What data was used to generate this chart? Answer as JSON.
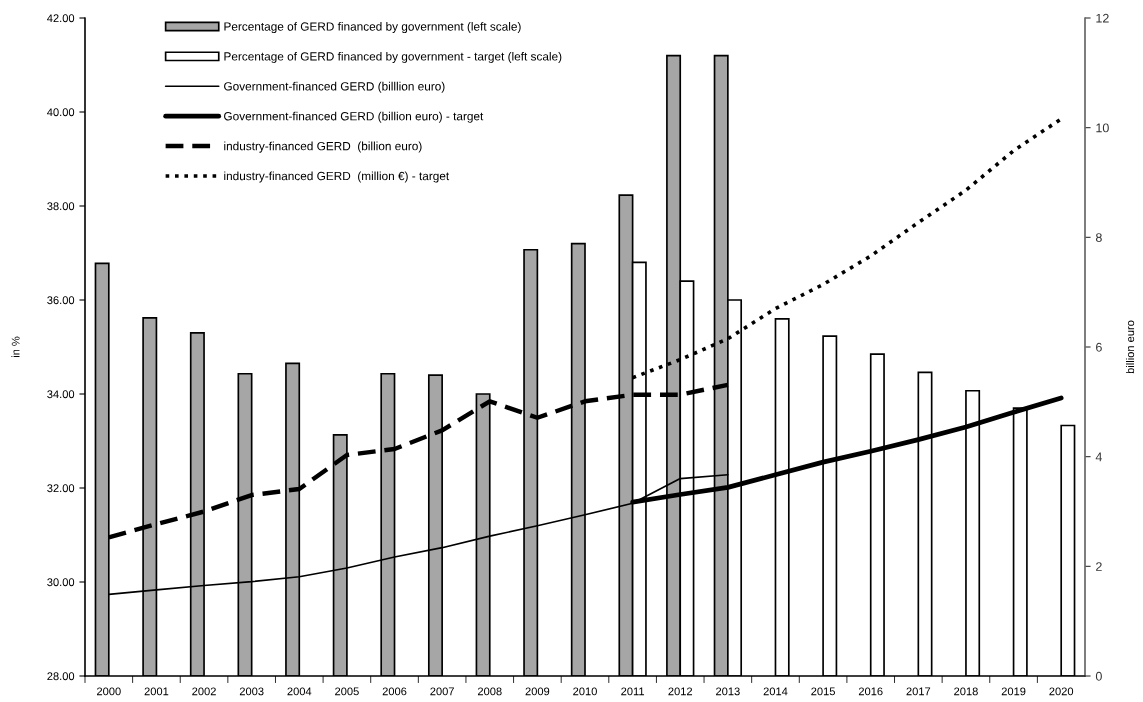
{
  "chart_data": {
    "type": "bar",
    "ylabel": "in %",
    "y2label": "billion euro",
    "categories": [
      "2000",
      "2001",
      "2002",
      "2003",
      "2004",
      "2005",
      "2006",
      "2007",
      "2008",
      "2009",
      "2010",
      "2011",
      "2012",
      "2013",
      "2014",
      "2015",
      "2016",
      "2017",
      "2018",
      "2019",
      "2020"
    ],
    "series": [
      {
        "name": "Percentage of GERD financed by government (left scale)",
        "color": "#a6a6a6",
        "values": [
          36.78,
          35.62,
          35.3,
          34.43,
          34.65,
          33.13,
          34.43,
          34.4,
          34.0,
          37.07,
          37.2,
          38.23,
          41.2,
          41.2,
          null,
          null,
          null,
          null,
          null,
          null,
          null
        ]
      },
      {
        "name": "Percentage of GERD financed by government - target (left scale)",
        "color": "#ffffff",
        "values": [
          null,
          null,
          null,
          null,
          null,
          null,
          null,
          null,
          null,
          null,
          null,
          36.8,
          36.4,
          36.0,
          35.6,
          35.23,
          34.85,
          34.46,
          34.07,
          33.7,
          33.33
        ]
      },
      {
        "name": "Government-financed GERD (billlion euro)",
        "type": "line",
        "axis": "y2",
        "color": "#000000",
        "line_style": "solid",
        "values": [
          1.49,
          1.57,
          1.65,
          1.72,
          1.81,
          1.97,
          2.17,
          2.34,
          2.55,
          2.74,
          2.94,
          3.15,
          3.6,
          3.67,
          null,
          null,
          null,
          null,
          null,
          null,
          null
        ]
      },
      {
        "name": "Government-financed GERD (billion euro) - target",
        "type": "line",
        "axis": "y2",
        "color": "#000000",
        "line_style": "solid",
        "values": [
          null,
          null,
          null,
          null,
          null,
          null,
          null,
          null,
          null,
          null,
          null,
          3.17,
          3.31,
          3.44,
          3.67,
          3.9,
          4.1,
          4.31,
          4.54,
          4.81,
          5.07
        ]
      },
      {
        "name": "industry-financed GERD  (billion euro)",
        "type": "line",
        "axis": "y2",
        "color": "#000000",
        "line_style": "dashed",
        "values": [
          2.53,
          2.77,
          3.0,
          3.3,
          3.41,
          4.03,
          4.14,
          4.48,
          5.01,
          4.71,
          5.01,
          5.13,
          5.13,
          5.31,
          null,
          null,
          null,
          null,
          null,
          null,
          null
        ]
      },
      {
        "name": "industry-financed GERD  (million €) - target",
        "type": "line",
        "axis": "y2",
        "color": "#000000",
        "line_style": "dotted",
        "values": [
          null,
          null,
          null,
          null,
          null,
          null,
          null,
          null,
          null,
          null,
          null,
          5.44,
          5.77,
          6.15,
          6.7,
          7.14,
          7.66,
          8.27,
          8.86,
          9.58,
          10.16
        ]
      }
    ],
    "ylim": [
      28,
      42
    ],
    "yticks": [
      {
        "value": 28,
        "label": "28.00"
      },
      {
        "value": 30,
        "label": "30.00"
      },
      {
        "value": 32,
        "label": "32.00"
      },
      {
        "value": 34,
        "label": "34.00"
      },
      {
        "value": 36,
        "label": "36.00"
      },
      {
        "value": 38,
        "label": "38.00"
      },
      {
        "value": 40,
        "label": "40.00"
      },
      {
        "value": 42,
        "label": "42.00"
      }
    ],
    "y2lim": [
      0,
      12
    ],
    "y2ticks": [
      0,
      2,
      4,
      6,
      8,
      10,
      12
    ],
    "grid": false,
    "legend": "top left"
  }
}
